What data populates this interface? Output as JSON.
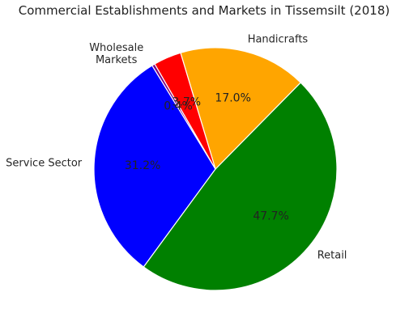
{
  "chart_data": {
    "type": "pie",
    "title": "Commercial Establishments and Markets in Tissemsilt (2018)",
    "start_angle_deg": 120,
    "direction": "counterclockwise",
    "slices": [
      {
        "label": "Wholesale Markets",
        "value": 0.4,
        "pct_text": "0.4%",
        "color": "#800080"
      },
      {
        "label": "Service Sector",
        "value": 31.2,
        "pct_text": "31.2%",
        "color": "#0000ff"
      },
      {
        "label": "Retail",
        "value": 47.7,
        "pct_text": "47.7%",
        "color": "#008000"
      },
      {
        "label": "Handicrafts",
        "value": 17.0,
        "pct_text": "17.0%",
        "color": "#ffa500"
      },
      {
        "label": "",
        "value": 3.7,
        "pct_text": "3.7%",
        "color": "#ff0000"
      }
    ]
  }
}
